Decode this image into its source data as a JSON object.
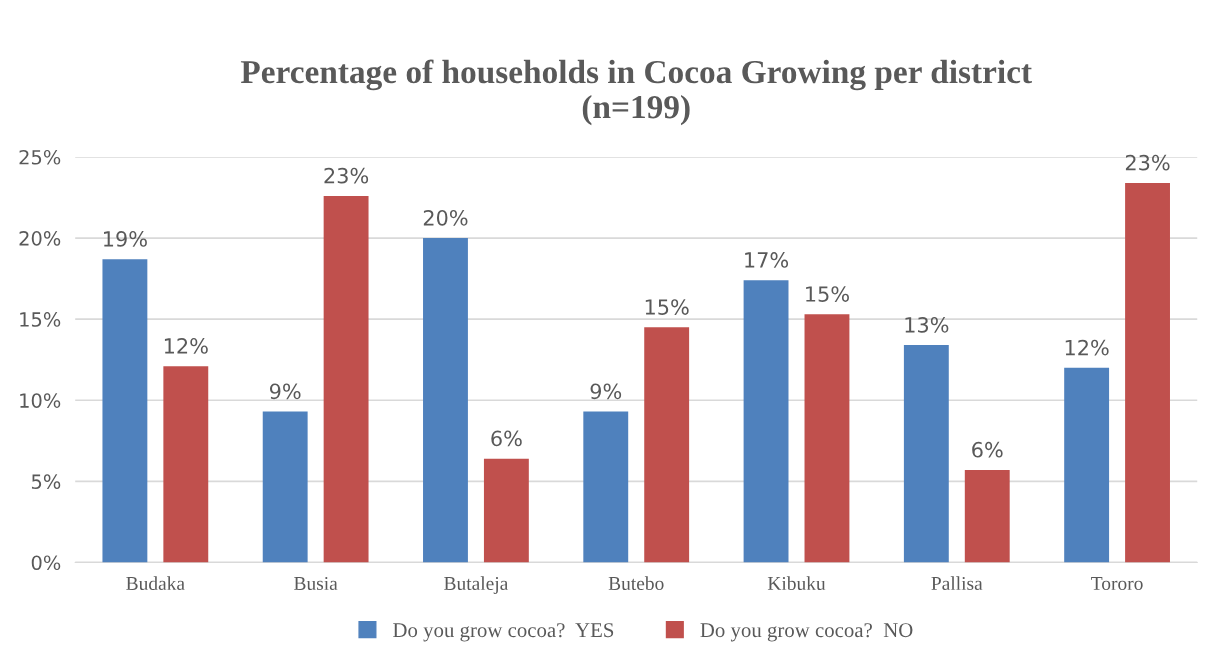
{
  "chart_data": {
    "type": "bar",
    "title": "Percentage of households in Cocoa Growing per district\n(n=199)",
    "categories": [
      "Budaka",
      "Busia",
      "Butaleja",
      "Butebo",
      "Kibuku",
      "Pallisa",
      "Tororo"
    ],
    "series": [
      {
        "name": "Do you grow cocoa?  YES",
        "color": "#4f81bd",
        "values": [
          18.7,
          9.3,
          20.0,
          9.3,
          17.4,
          13.4,
          12.0
        ],
        "value_labels": [
          "19%",
          "9%",
          "20%",
          "9%",
          "17%",
          "13%",
          "12%"
        ]
      },
      {
        "name": "Do you grow cocoa?  NO",
        "color": "#c0504d",
        "values": [
          12.1,
          22.6,
          6.4,
          14.5,
          15.3,
          5.7,
          23.4
        ],
        "value_labels": [
          "12%",
          "23%",
          "6%",
          "15%",
          "15%",
          "6%",
          "23%"
        ]
      }
    ],
    "ylim": [
      0,
      25
    ],
    "yticks": [
      {
        "value": 0,
        "label": "0%"
      },
      {
        "value": 5,
        "label": "5%"
      },
      {
        "value": 10,
        "label": "10%"
      },
      {
        "value": 15,
        "label": "15%"
      },
      {
        "value": 20,
        "label": "20%"
      },
      {
        "value": 25,
        "label": "25%"
      }
    ],
    "grid": "y",
    "legend": "bottom"
  }
}
